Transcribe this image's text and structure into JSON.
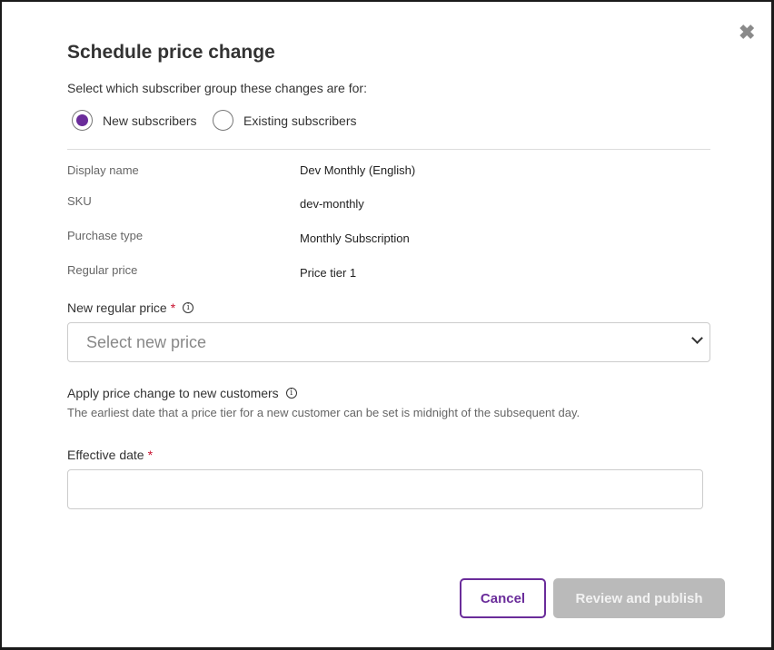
{
  "dialog": {
    "title": "Schedule price change",
    "subtitle": "Select which subscriber group these changes are for:",
    "radios": [
      {
        "label": "New subscribers",
        "selected": true
      },
      {
        "label": "Existing subscribers",
        "selected": false
      }
    ],
    "details": [
      {
        "label": "Display name",
        "value": "Dev Monthly (English)"
      },
      {
        "label": "SKU",
        "value": "dev-monthly"
      },
      {
        "label": "Purchase type",
        "value": "Monthly Subscription"
      },
      {
        "label": "Regular price",
        "value": "Price tier 1"
      }
    ],
    "new_price": {
      "label": "New regular price",
      "required": "*",
      "placeholder": "Select new price"
    },
    "apply": {
      "label": "Apply price change to new customers",
      "help": "The earliest date that a price tier for a new customer can be set is midnight of the subsequent day."
    },
    "effective_date": {
      "label": "Effective date",
      "required": "*",
      "value": ""
    },
    "buttons": {
      "cancel": "Cancel",
      "publish": "Review and publish"
    },
    "close_icon": "✖",
    "info_icon": "i"
  },
  "colors": {
    "accent": "#6a2c9a",
    "required": "#c8102e",
    "disabled": "#bababa"
  }
}
